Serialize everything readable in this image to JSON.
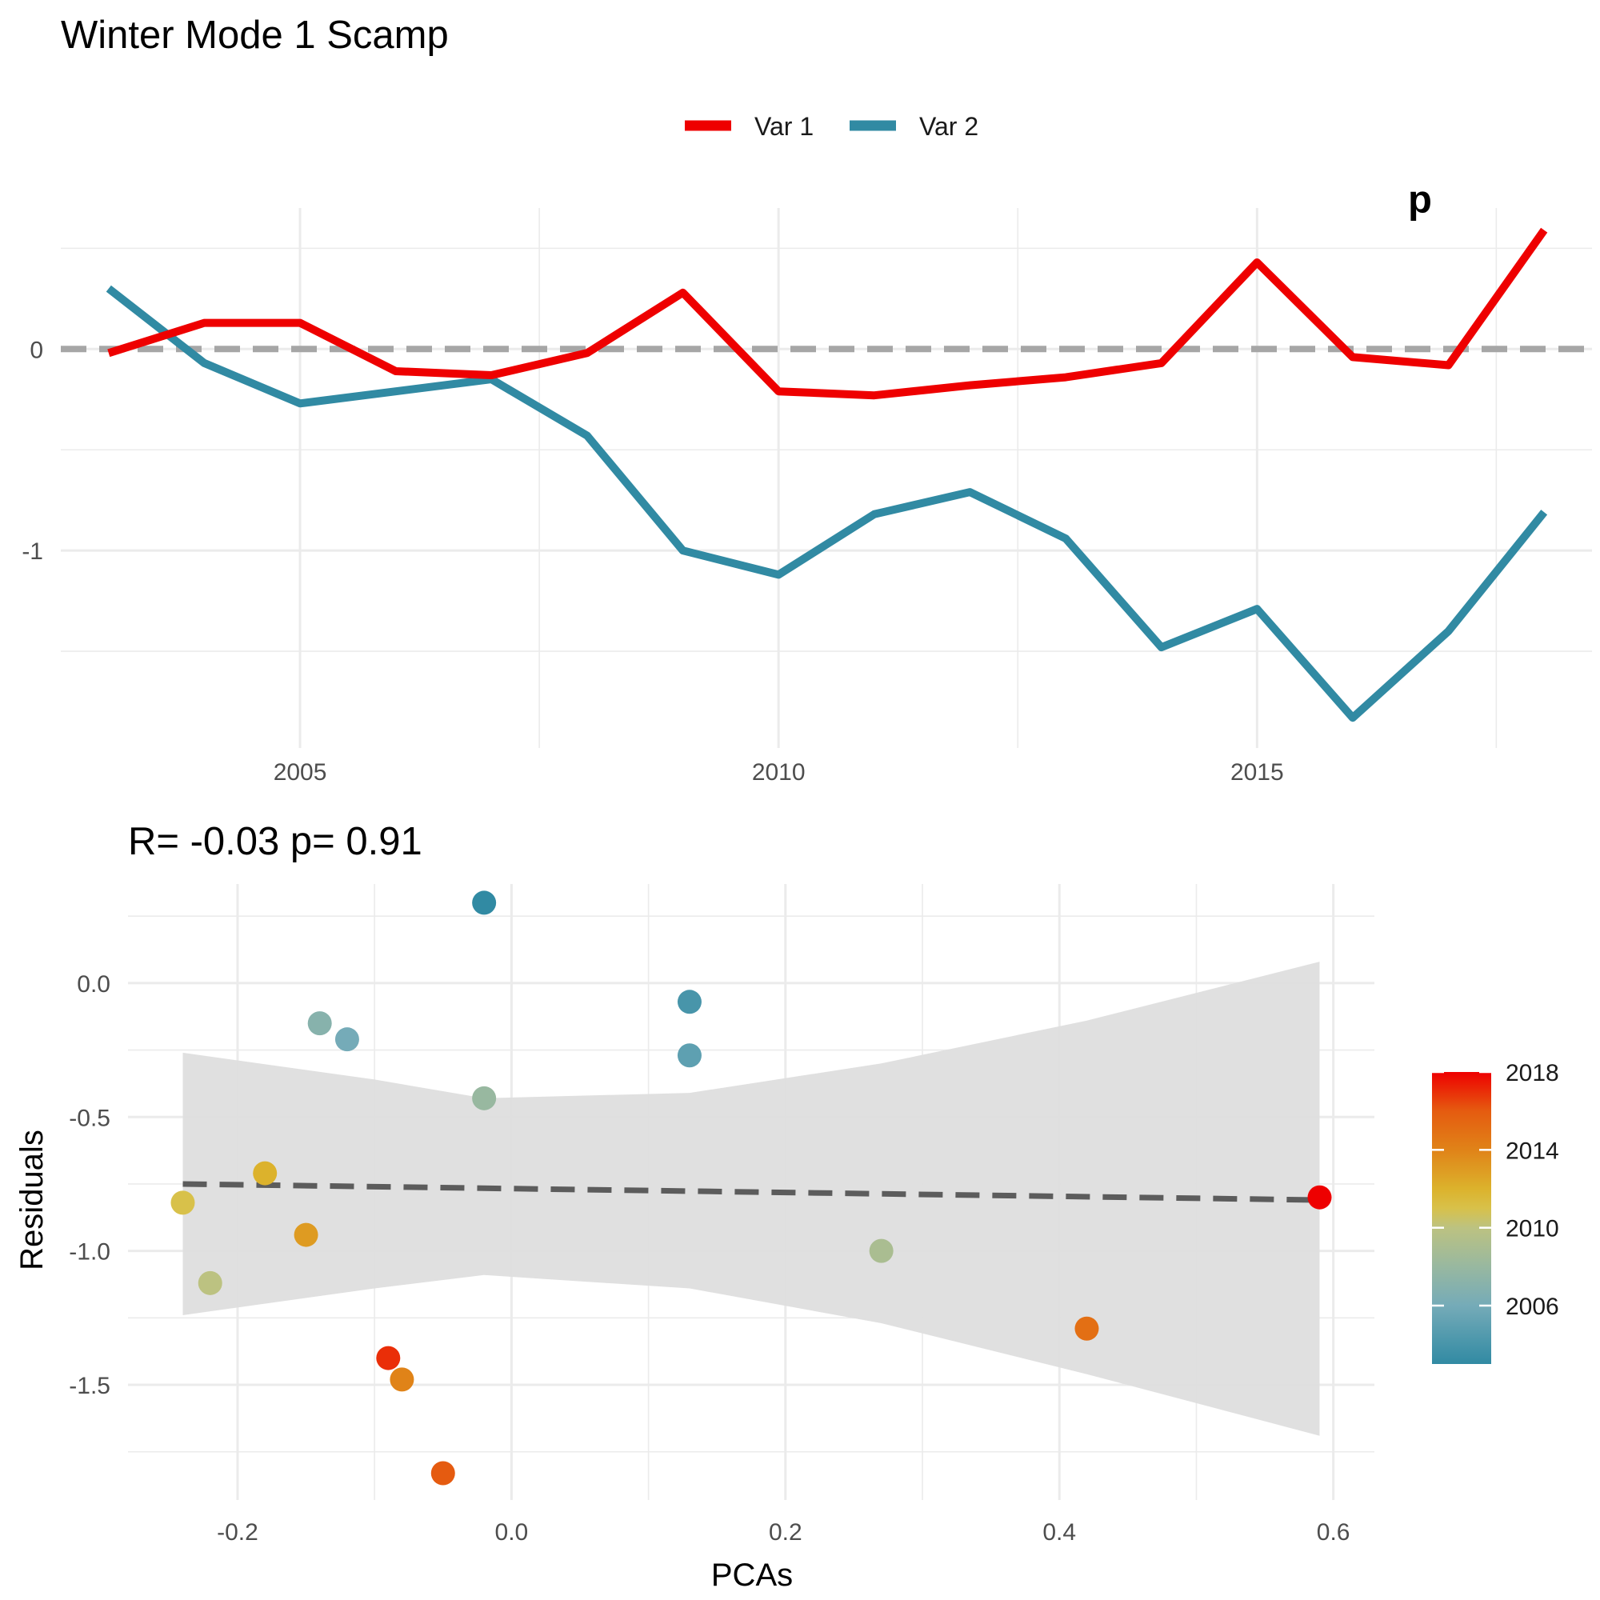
{
  "title": "Winter Mode 1 Scamp",
  "top_right_partial_text": "p",
  "colors": {
    "var1": "#ee0000",
    "var2": "#318aa3",
    "zero_line": "#a6a6a6",
    "band": "#dedede",
    "fit_line": "#5c5c5c"
  },
  "chart_data": [
    {
      "type": "line",
      "title": "",
      "xlabel": "",
      "ylabel": "",
      "x": [
        2003,
        2004,
        2005,
        2006,
        2007,
        2008,
        2009,
        2010,
        2011,
        2012,
        2013,
        2014,
        2015,
        2016,
        2017,
        2018
      ],
      "series": [
        {
          "name": "Var 1",
          "values": [
            -0.02,
            0.13,
            0.13,
            -0.11,
            -0.13,
            -0.02,
            0.28,
            -0.21,
            -0.23,
            -0.18,
            -0.14,
            -0.07,
            0.43,
            -0.04,
            -0.08,
            0.59
          ]
        },
        {
          "name": "Var 2",
          "values": [
            0.3,
            -0.07,
            -0.27,
            -0.21,
            -0.15,
            -0.43,
            -1.0,
            -1.12,
            -0.82,
            -0.71,
            -0.94,
            -1.48,
            -1.29,
            -1.83,
            -1.4,
            -0.81
          ]
        }
      ],
      "xticks": [
        2005,
        2010,
        2015
      ],
      "yticks": [
        -1,
        0
      ],
      "xlim": [
        2002.5,
        2018.5
      ],
      "ylim": [
        -1.98,
        0.7
      ],
      "reference_line": {
        "y": 0,
        "style": "dashed"
      },
      "legend": {
        "position": "top",
        "entries": [
          "Var 1",
          "Var 2"
        ]
      },
      "grid": true
    },
    {
      "type": "scatter",
      "title": "R= -0.03  p= 0.91",
      "xlabel": "PCAs",
      "ylabel": "Residuals",
      "xticks": [
        -0.2,
        0.0,
        0.2,
        0.4,
        0.6
      ],
      "xtick_labels": [
        "-0.2",
        "0.0",
        "0.2",
        "0.4",
        "0.6"
      ],
      "yticks": [
        -1.5,
        -1.0,
        -0.5,
        0.0
      ],
      "ytick_labels": [
        "-1.5",
        "-1.0",
        "-0.5",
        "0.0"
      ],
      "xlim": [
        -0.28,
        0.63
      ],
      "ylim": [
        -1.93,
        0.37
      ],
      "points": [
        {
          "x": -0.02,
          "y": 0.3,
          "year": 2003
        },
        {
          "x": 0.13,
          "y": -0.07,
          "year": 2004
        },
        {
          "x": 0.13,
          "y": -0.27,
          "year": 2005
        },
        {
          "x": -0.12,
          "y": -0.21,
          "year": 2006
        },
        {
          "x": -0.14,
          "y": -0.15,
          "year": 2007
        },
        {
          "x": -0.02,
          "y": -0.43,
          "year": 2008
        },
        {
          "x": 0.27,
          "y": -1.0,
          "year": 2009
        },
        {
          "x": -0.22,
          "y": -1.12,
          "year": 2010
        },
        {
          "x": -0.24,
          "y": -0.82,
          "year": 2011
        },
        {
          "x": -0.18,
          "y": -0.71,
          "year": 2012
        },
        {
          "x": -0.15,
          "y": -0.94,
          "year": 2013
        },
        {
          "x": -0.08,
          "y": -1.48,
          "year": 2014
        },
        {
          "x": 0.42,
          "y": -1.29,
          "year": 2015
        },
        {
          "x": -0.05,
          "y": -1.83,
          "year": 2016
        },
        {
          "x": -0.09,
          "y": -1.4,
          "year": 2017
        },
        {
          "x": 0.59,
          "y": -0.8,
          "year": 2018
        }
      ],
      "fit_line": {
        "x": [
          -0.24,
          0.59
        ],
        "y": [
          -0.75,
          -0.81
        ],
        "style": "dashed"
      },
      "confidence_band": {
        "x": [
          -0.24,
          -0.1,
          -0.02,
          0.13,
          0.27,
          0.42,
          0.59
        ],
        "upper": [
          -0.26,
          -0.36,
          -0.43,
          -0.41,
          -0.3,
          -0.14,
          0.08
        ],
        "lower": [
          -1.24,
          -1.14,
          -1.09,
          -1.14,
          -1.27,
          -1.46,
          -1.69
        ]
      },
      "colorbar": {
        "ticks": [
          2006,
          2010,
          2014,
          2018
        ],
        "range": [
          2003,
          2018
        ],
        "stops": [
          {
            "value": 2003,
            "color": "#318aa3"
          },
          {
            "value": 2006,
            "color": "#75abb8"
          },
          {
            "value": 2008,
            "color": "#98b8a0"
          },
          {
            "value": 2010,
            "color": "#bcc281"
          },
          {
            "value": 2011,
            "color": "#d8c14a"
          },
          {
            "value": 2012,
            "color": "#dcb22c"
          },
          {
            "value": 2014,
            "color": "#e08318"
          },
          {
            "value": 2016,
            "color": "#e55b10"
          },
          {
            "value": 2018,
            "color": "#ee0000"
          }
        ]
      },
      "grid": true
    }
  ]
}
